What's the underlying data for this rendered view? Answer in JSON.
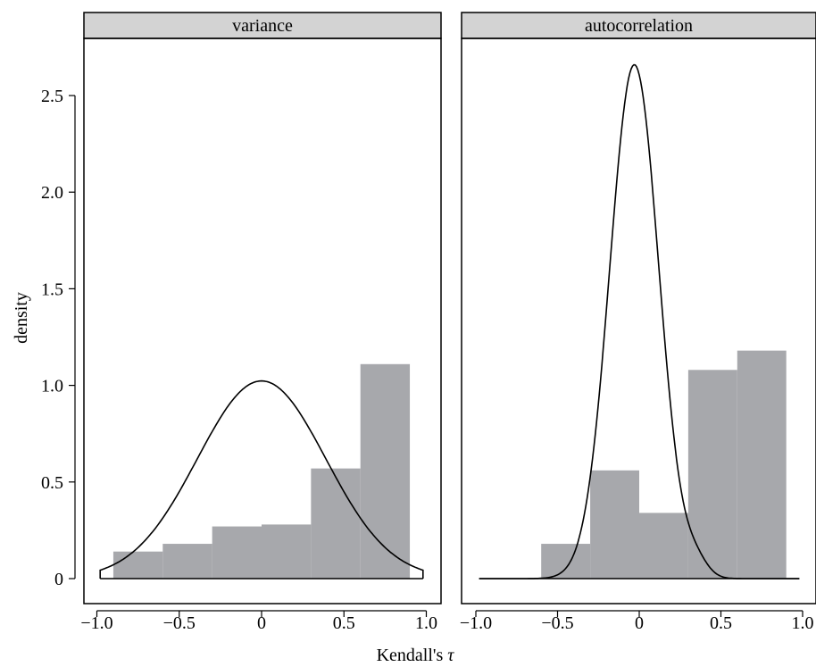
{
  "chart_data": {
    "type": "histogram",
    "xlabel_text": "Kendall's ",
    "xlabel_symbol": "τ",
    "ylabel": "density",
    "xlim": [
      -1.0,
      1.0
    ],
    "ylim": [
      0,
      2.75
    ],
    "y_ticks": [
      0,
      0.5,
      1.0,
      1.5,
      2.0,
      2.5
    ],
    "y_tick_labels": [
      "0",
      "0.5",
      "1.0",
      "1.5",
      "2.0",
      "2.5"
    ],
    "x_ticks": [
      -1.0,
      -0.5,
      0,
      0.5,
      1.0
    ],
    "x_tick_labels": [
      "−1.0",
      "−0.5",
      "0",
      "0.5",
      "1.0"
    ],
    "colors": {
      "bar": "#a7a8ac",
      "strip": "#d3d3d3",
      "line": "#000000"
    },
    "panels": [
      {
        "strip_label": "variance",
        "bars": [
          {
            "x0": -0.9,
            "x1": -0.6,
            "density": 0.14
          },
          {
            "x0": -0.6,
            "x1": -0.3,
            "density": 0.18
          },
          {
            "x0": -0.3,
            "x1": 0.0,
            "density": 0.27
          },
          {
            "x0": 0.0,
            "x1": 0.3,
            "density": 0.28
          },
          {
            "x0": 0.3,
            "x1": 0.6,
            "density": 0.57
          },
          {
            "x0": 0.6,
            "x1": 0.9,
            "density": 1.11
          }
        ],
        "null_density": {
          "mean": 0.0,
          "sd": 0.39,
          "xmin": -0.98,
          "xmax": 0.98
        }
      },
      {
        "strip_label": "autocorrelation",
        "bars": [
          {
            "x0": -0.9,
            "x1": -0.6,
            "density": 0.0
          },
          {
            "x0": -0.6,
            "x1": -0.3,
            "density": 0.18
          },
          {
            "x0": -0.3,
            "x1": 0.0,
            "density": 0.56
          },
          {
            "x0": 0.0,
            "x1": 0.3,
            "density": 0.34
          },
          {
            "x0": 0.3,
            "x1": 0.6,
            "density": 1.08
          },
          {
            "x0": 0.6,
            "x1": 0.9,
            "density": 1.18
          }
        ],
        "null_density": {
          "mean": -0.03,
          "sd": 0.15,
          "xmin": -0.98,
          "xmax": 0.98,
          "tail_shoulder": {
            "x": 0.35,
            "height": 0.07,
            "sd": 0.07
          }
        }
      }
    ]
  }
}
